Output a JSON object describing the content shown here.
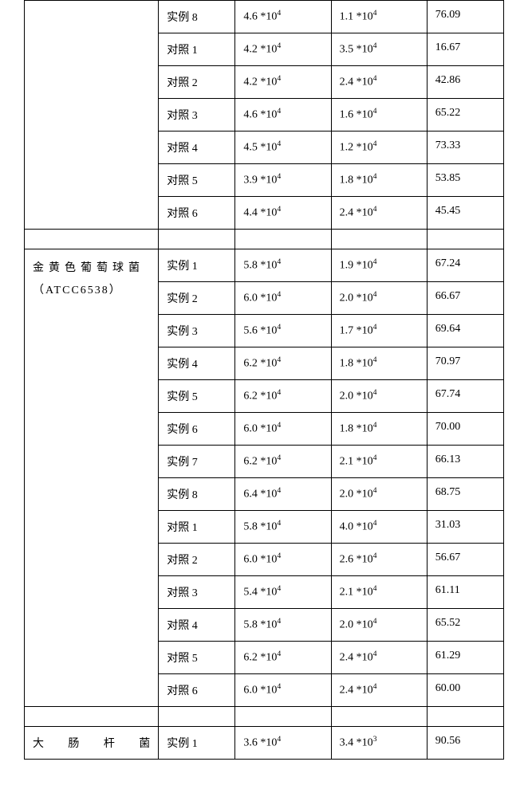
{
  "columns": {
    "widths_pct": [
      28,
      16,
      20,
      20,
      16
    ]
  },
  "section1": {
    "group_label": "",
    "rows": [
      {
        "name": "实例 8",
        "v1_base": "4.6",
        "v1_exp": "4",
        "v2_base": "1.1",
        "v2_exp": "4",
        "pct": "76.09"
      },
      {
        "name": "对照 1",
        "v1_base": "4.2",
        "v1_exp": "4",
        "v2_base": "3.5",
        "v2_exp": "4",
        "pct": "16.67"
      },
      {
        "name": "对照 2",
        "v1_base": "4.2",
        "v1_exp": "4",
        "v2_base": "2.4",
        "v2_exp": "4",
        "pct": "42.86"
      },
      {
        "name": "对照 3",
        "v1_base": "4.6",
        "v1_exp": "4",
        "v2_base": "1.6",
        "v2_exp": "4",
        "pct": "65.22"
      },
      {
        "name": "对照 4",
        "v1_base": "4.5",
        "v1_exp": "4",
        "v2_base": "1.2",
        "v2_exp": "4",
        "pct": "73.33"
      },
      {
        "name": "对照 5",
        "v1_base": "3.9",
        "v1_exp": "4",
        "v2_base": "1.8",
        "v2_exp": "4",
        "pct": "53.85"
      },
      {
        "name": "对照 6",
        "v1_base": "4.4",
        "v1_exp": "4",
        "v2_base": "2.4",
        "v2_exp": "4",
        "pct": "45.45"
      }
    ]
  },
  "section2": {
    "group_label_line1": "金黄色葡萄球菌",
    "group_label_line2": "（ATCC6538）",
    "rows": [
      {
        "name": "实例 1",
        "v1_base": "5.8",
        "v1_exp": "4",
        "v2_base": "1.9",
        "v2_exp": "4",
        "pct": "67.24"
      },
      {
        "name": "实例 2",
        "v1_base": "6.0",
        "v1_exp": "4",
        "v2_base": "2.0",
        "v2_exp": "4",
        "pct": "66.67"
      },
      {
        "name": "实例 3",
        "v1_base": "5.6",
        "v1_exp": "4",
        "v2_base": "1.7",
        "v2_exp": "4",
        "pct": "69.64"
      },
      {
        "name": "实例 4",
        "v1_base": "6.2",
        "v1_exp": "4",
        "v2_base": "1.8",
        "v2_exp": "4",
        "pct": "70.97"
      },
      {
        "name": "实例 5",
        "v1_base": "6.2",
        "v1_exp": "4",
        "v2_base": "2.0",
        "v2_exp": "4",
        "pct": "67.74"
      },
      {
        "name": "实例 6",
        "v1_base": "6.0",
        "v1_exp": "4",
        "v2_base": "1.8",
        "v2_exp": "4",
        "pct": "70.00"
      },
      {
        "name": "实例 7",
        "v1_base": "6.2",
        "v1_exp": "4",
        "v2_base": "2.1",
        "v2_exp": "4",
        "pct": "66.13"
      },
      {
        "name": "实例 8",
        "v1_base": "6.4",
        "v1_exp": "4",
        "v2_base": "2.0",
        "v2_exp": "4",
        "pct": "68.75"
      },
      {
        "name": "对照 1",
        "v1_base": "5.8",
        "v1_exp": "4",
        "v2_base": "4.0",
        "v2_exp": "4",
        "pct": "31.03"
      },
      {
        "name": "对照 2",
        "v1_base": "6.0",
        "v1_exp": "4",
        "v2_base": "2.6",
        "v2_exp": "4",
        "pct": "56.67"
      },
      {
        "name": "对照 3",
        "v1_base": "5.4",
        "v1_exp": "4",
        "v2_base": "2.1",
        "v2_exp": "4",
        "pct": "61.11"
      },
      {
        "name": "对照 4",
        "v1_base": "5.8",
        "v1_exp": "4",
        "v2_base": "2.0",
        "v2_exp": "4",
        "pct": "65.52"
      },
      {
        "name": "对照 5",
        "v1_base": "6.2",
        "v1_exp": "4",
        "v2_base": "2.4",
        "v2_exp": "4",
        "pct": "61.29"
      },
      {
        "name": "对照 6",
        "v1_base": "6.0",
        "v1_exp": "4",
        "v2_base": "2.4",
        "v2_exp": "4",
        "pct": "60.00"
      }
    ]
  },
  "section3": {
    "group_label_justified": "大肠杆菌",
    "rows": [
      {
        "name": "实例 1",
        "v1_base": "3.6",
        "v1_exp": "4",
        "v2_base": "3.4",
        "v2_exp": "3",
        "pct": "90.56"
      }
    ]
  }
}
